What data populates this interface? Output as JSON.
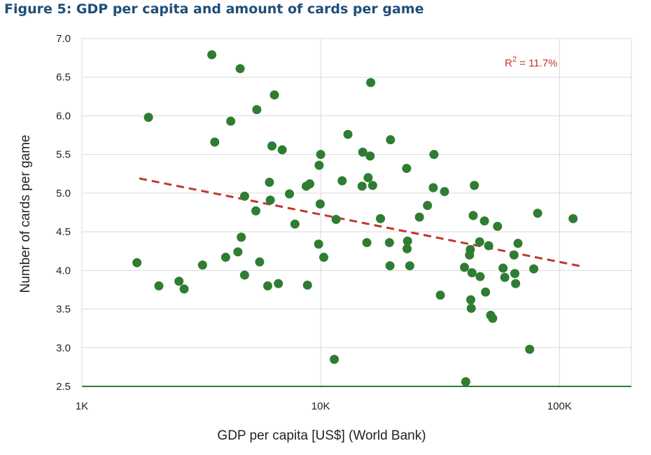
{
  "figure_title": "Figure 5: GDP per capita and amount of cards per game",
  "colors": {
    "title": "#1f4e79",
    "points": "#2e7d32",
    "trendline": "#c0392b",
    "baseline": "#2e7d32",
    "grid": "#d9d9d9"
  },
  "chart_data": {
    "type": "scatter",
    "xlabel": "GDP per capita [US$] (World Bank)",
    "ylabel": "Number of cards per game",
    "x_scale": "log",
    "xlim": [
      1000,
      200000
    ],
    "ylim": [
      2.5,
      7.0
    ],
    "x_ticks": [
      {
        "value": 1000,
        "label": "1K"
      },
      {
        "value": 10000,
        "label": "10K"
      },
      {
        "value": 100000,
        "label": "100K"
      }
    ],
    "y_ticks": [
      {
        "value": 2.5,
        "label": "2.5"
      },
      {
        "value": 3.0,
        "label": "3.0"
      },
      {
        "value": 3.5,
        "label": "3.5"
      },
      {
        "value": 4.0,
        "label": "4.0"
      },
      {
        "value": 4.5,
        "label": "4.5"
      },
      {
        "value": 5.0,
        "label": "5.0"
      },
      {
        "value": 5.5,
        "label": "5.5"
      },
      {
        "value": 6.0,
        "label": "6.0"
      },
      {
        "value": 6.5,
        "label": "6.5"
      },
      {
        "value": 7.0,
        "label": "7.0"
      }
    ],
    "grid": true,
    "annotation": {
      "prefix": "R",
      "sup": "2",
      "suffix": " = 11.7%"
    },
    "trendline": {
      "style": "dashed",
      "x": [
        1740,
        125000
      ],
      "y": [
        5.19,
        4.05
      ]
    },
    "points": [
      {
        "x": 1700,
        "y": 4.1
      },
      {
        "x": 1900,
        "y": 5.98
      },
      {
        "x": 2100,
        "y": 3.8
      },
      {
        "x": 2550,
        "y": 3.86
      },
      {
        "x": 2680,
        "y": 3.76
      },
      {
        "x": 3200,
        "y": 4.07
      },
      {
        "x": 3500,
        "y": 6.79
      },
      {
        "x": 3600,
        "y": 5.66
      },
      {
        "x": 4000,
        "y": 4.17
      },
      {
        "x": 4200,
        "y": 5.93
      },
      {
        "x": 4500,
        "y": 4.24
      },
      {
        "x": 4600,
        "y": 6.61
      },
      {
        "x": 4650,
        "y": 4.43
      },
      {
        "x": 4800,
        "y": 4.96
      },
      {
        "x": 4800,
        "y": 3.94
      },
      {
        "x": 5350,
        "y": 4.77
      },
      {
        "x": 5400,
        "y": 6.08
      },
      {
        "x": 5550,
        "y": 4.11
      },
      {
        "x": 6000,
        "y": 3.8
      },
      {
        "x": 6100,
        "y": 5.14
      },
      {
        "x": 6150,
        "y": 4.91
      },
      {
        "x": 6250,
        "y": 5.61
      },
      {
        "x": 6400,
        "y": 6.27
      },
      {
        "x": 6650,
        "y": 3.83
      },
      {
        "x": 6900,
        "y": 5.56
      },
      {
        "x": 7400,
        "y": 4.99
      },
      {
        "x": 7800,
        "y": 4.6
      },
      {
        "x": 8700,
        "y": 5.09
      },
      {
        "x": 8800,
        "y": 3.81
      },
      {
        "x": 9000,
        "y": 5.12
      },
      {
        "x": 9800,
        "y": 4.34
      },
      {
        "x": 9850,
        "y": 5.36
      },
      {
        "x": 9950,
        "y": 4.86
      },
      {
        "x": 10000,
        "y": 5.5
      },
      {
        "x": 10300,
        "y": 4.17
      },
      {
        "x": 11400,
        "y": 2.85
      },
      {
        "x": 11600,
        "y": 4.66
      },
      {
        "x": 12300,
        "y": 5.16
      },
      {
        "x": 13000,
        "y": 5.76
      },
      {
        "x": 14900,
        "y": 5.09
      },
      {
        "x": 15000,
        "y": 5.53
      },
      {
        "x": 15600,
        "y": 4.36
      },
      {
        "x": 15800,
        "y": 5.2
      },
      {
        "x": 16100,
        "y": 5.48
      },
      {
        "x": 16200,
        "y": 6.43
      },
      {
        "x": 16500,
        "y": 5.1
      },
      {
        "x": 17800,
        "y": 4.67
      },
      {
        "x": 19400,
        "y": 4.36
      },
      {
        "x": 19500,
        "y": 4.06
      },
      {
        "x": 19600,
        "y": 5.69
      },
      {
        "x": 22900,
        "y": 5.32
      },
      {
        "x": 23000,
        "y": 4.28
      },
      {
        "x": 23100,
        "y": 4.38
      },
      {
        "x": 23600,
        "y": 4.06
      },
      {
        "x": 25900,
        "y": 4.69
      },
      {
        "x": 28000,
        "y": 4.84
      },
      {
        "x": 29600,
        "y": 5.07
      },
      {
        "x": 29800,
        "y": 5.5
      },
      {
        "x": 31700,
        "y": 3.68
      },
      {
        "x": 33000,
        "y": 5.02
      },
      {
        "x": 40000,
        "y": 4.04
      },
      {
        "x": 40500,
        "y": 2.56
      },
      {
        "x": 42000,
        "y": 4.2
      },
      {
        "x": 42300,
        "y": 4.27
      },
      {
        "x": 42500,
        "y": 3.62
      },
      {
        "x": 42700,
        "y": 3.51
      },
      {
        "x": 43000,
        "y": 3.97
      },
      {
        "x": 43500,
        "y": 4.71
      },
      {
        "x": 44000,
        "y": 5.1
      },
      {
        "x": 46300,
        "y": 4.37
      },
      {
        "x": 46500,
        "y": 3.92
      },
      {
        "x": 48500,
        "y": 4.64
      },
      {
        "x": 49000,
        "y": 3.72
      },
      {
        "x": 50500,
        "y": 4.32
      },
      {
        "x": 51500,
        "y": 3.42
      },
      {
        "x": 52500,
        "y": 3.38
      },
      {
        "x": 55000,
        "y": 4.57
      },
      {
        "x": 58000,
        "y": 4.03
      },
      {
        "x": 59000,
        "y": 3.91
      },
      {
        "x": 64500,
        "y": 4.2
      },
      {
        "x": 65000,
        "y": 3.96
      },
      {
        "x": 65500,
        "y": 3.83
      },
      {
        "x": 67000,
        "y": 4.35
      },
      {
        "x": 75000,
        "y": 2.98
      },
      {
        "x": 78000,
        "y": 4.02
      },
      {
        "x": 81000,
        "y": 4.74
      },
      {
        "x": 114000,
        "y": 4.67
      }
    ]
  }
}
